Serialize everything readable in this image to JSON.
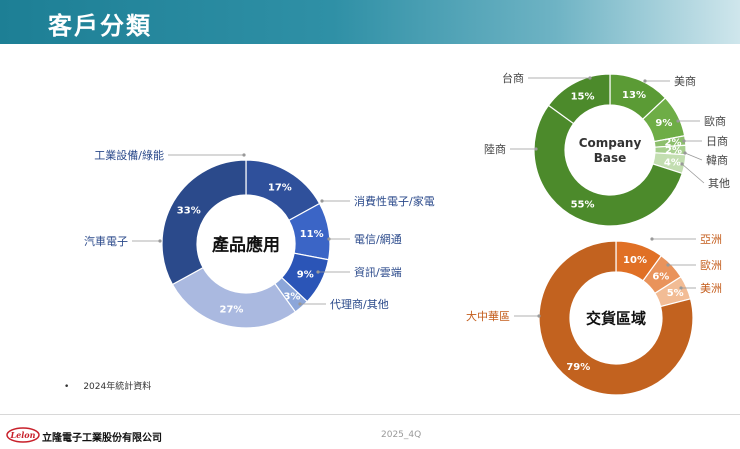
{
  "page": {
    "title": "客戶分類",
    "footnote_bullet": "•",
    "footnote": "2024年統計資料",
    "period": "2025_4Q",
    "company_name": "立隆電子工業股份有限公司",
    "logo_text": "Lelon"
  },
  "chart_data": [
    {
      "type": "pie",
      "style": "donut",
      "center_label": "產品應用",
      "label_color": "#2b4a8b",
      "categories": [
        "工業設備/綠能",
        "消費性電子/家電",
        "電信/網通",
        "資訊/雲端",
        "代理商/其他",
        "汽車電子"
      ],
      "values": [
        17,
        11,
        9,
        3,
        27,
        33
      ],
      "value_labels": [
        "17%",
        "11%",
        "9%",
        "3%",
        "27%",
        "33%"
      ],
      "colors": [
        "#2f509b",
        "#3b65c6",
        "#2b55b7",
        "#8ca6d9",
        "#aab9e0",
        "#2b4a8b"
      ]
    },
    {
      "type": "pie",
      "style": "donut",
      "center_label": "Company Base",
      "label_color": "#444444",
      "categories": [
        "美商",
        "歐商",
        "日商",
        "韓商",
        "其他",
        "陸商",
        "台商"
      ],
      "values": [
        13,
        9,
        2,
        2,
        4,
        55,
        15
      ],
      "value_labels": [
        "13%",
        "9%",
        "2%",
        "2%",
        "4%",
        "55%",
        "15%"
      ],
      "colors": [
        "#5b9b35",
        "#6ead46",
        "#8cbe6c",
        "#a7cf8e",
        "#c3deb1",
        "#4c8a2b",
        "#4c8a2b"
      ]
    },
    {
      "type": "pie",
      "style": "donut",
      "center_label": "交貨區域",
      "label_color": "#c45d1c",
      "categories": [
        "亞洲",
        "歐洲",
        "美洲",
        "大中華區"
      ],
      "values": [
        10,
        6,
        5,
        79
      ],
      "value_labels": [
        "10%",
        "6%",
        "5%",
        "79%"
      ],
      "colors": [
        "#e07025",
        "#e9935b",
        "#f2bc95",
        "#c2621f"
      ]
    }
  ]
}
